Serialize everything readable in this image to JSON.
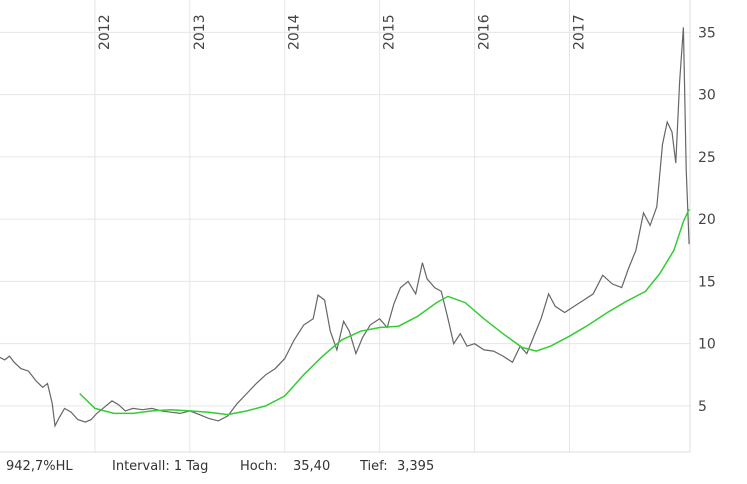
{
  "chart_data": {
    "type": "line",
    "xlim": [
      2011.0,
      2018.27
    ],
    "ylim": [
      1.3,
      37.6
    ],
    "xticks": [
      2012,
      2013,
      2014,
      2015,
      2016,
      2017
    ],
    "yticks": [
      5,
      10,
      15,
      20,
      25,
      30,
      35
    ],
    "grid": true,
    "series": [
      {
        "color": "#666666",
        "x": [
          2011.0,
          2011.05,
          2011.1,
          2011.15,
          2011.22,
          2011.3,
          2011.38,
          2011.45,
          2011.5,
          2011.55,
          2011.58,
          2011.62,
          2011.68,
          2011.75,
          2011.82,
          2011.9,
          2011.96,
          2012.02,
          2012.1,
          2012.18,
          2012.25,
          2012.32,
          2012.4,
          2012.5,
          2012.6,
          2012.7,
          2012.8,
          2012.9,
          2013.0,
          2013.1,
          2013.2,
          2013.3,
          2013.4,
          2013.5,
          2013.6,
          2013.7,
          2013.8,
          2013.9,
          2014.0,
          2014.1,
          2014.2,
          2014.3,
          2014.35,
          2014.42,
          2014.48,
          2014.55,
          2014.62,
          2014.68,
          2014.75,
          2014.82,
          2014.9,
          2015.0,
          2015.08,
          2015.15,
          2015.22,
          2015.3,
          2015.38,
          2015.45,
          2015.5,
          2015.58,
          2015.65,
          2015.72,
          2015.78,
          2015.85,
          2015.92,
          2016.0,
          2016.1,
          2016.2,
          2016.3,
          2016.4,
          2016.48,
          2016.55,
          2016.62,
          2016.7,
          2016.78,
          2016.85,
          2016.95,
          2017.05,
          2017.15,
          2017.25,
          2017.35,
          2017.45,
          2017.55,
          2017.62,
          2017.7,
          2017.78,
          2017.85,
          2017.92,
          2017.98,
          2018.03,
          2018.08,
          2018.12,
          2018.16,
          2018.2,
          2018.23,
          2018.26
        ],
        "values": [
          8.9,
          8.7,
          9.0,
          8.5,
          8.0,
          7.8,
          7.0,
          6.5,
          6.8,
          5.2,
          3.4,
          4.0,
          4.8,
          4.5,
          3.9,
          3.7,
          3.9,
          4.4,
          4.9,
          5.4,
          5.1,
          4.6,
          4.8,
          4.7,
          4.8,
          4.6,
          4.5,
          4.4,
          4.6,
          4.3,
          4.0,
          3.8,
          4.2,
          5.2,
          6.0,
          6.8,
          7.5,
          8.0,
          8.8,
          10.3,
          11.5,
          12.0,
          13.9,
          13.5,
          11.0,
          9.5,
          11.8,
          11.0,
          9.2,
          10.5,
          11.5,
          12.0,
          11.3,
          13.2,
          14.5,
          15.0,
          14.0,
          16.5,
          15.2,
          14.5,
          14.2,
          12.0,
          10.0,
          10.8,
          9.8,
          10.0,
          9.5,
          9.4,
          9.0,
          8.5,
          9.8,
          9.2,
          10.5,
          12.0,
          14.0,
          13.0,
          12.5,
          13.0,
          13.5,
          14.0,
          15.5,
          14.8,
          14.5,
          16.0,
          17.5,
          20.5,
          19.5,
          21.0,
          26.0,
          27.8,
          27.0,
          24.5,
          31.0,
          35.4,
          24.0,
          18.0
        ]
      },
      {
        "color": "#33cc33",
        "x": [
          2011.84,
          2012.0,
          2012.2,
          2012.4,
          2012.6,
          2012.8,
          2013.0,
          2013.2,
          2013.4,
          2013.6,
          2013.8,
          2014.0,
          2014.2,
          2014.4,
          2014.6,
          2014.8,
          2015.0,
          2015.2,
          2015.4,
          2015.6,
          2015.72,
          2015.9,
          2016.1,
          2016.3,
          2016.5,
          2016.65,
          2016.8,
          2017.0,
          2017.2,
          2017.4,
          2017.6,
          2017.8,
          2017.95,
          2018.1,
          2018.2,
          2018.26
        ],
        "values": [
          6.0,
          4.8,
          4.4,
          4.4,
          4.6,
          4.7,
          4.6,
          4.5,
          4.3,
          4.6,
          5.0,
          5.8,
          7.5,
          9.0,
          10.3,
          11.0,
          11.3,
          11.4,
          12.2,
          13.3,
          13.8,
          13.3,
          12.0,
          10.8,
          9.7,
          9.4,
          9.8,
          10.6,
          11.5,
          12.5,
          13.4,
          14.2,
          15.6,
          17.5,
          19.8,
          20.8
        ]
      }
    ]
  },
  "footer": {
    "range": "942,7%HL",
    "interval": "Intervall: 1 Tag",
    "high_label": "Hoch:",
    "high_value": "35,40",
    "low_label": "Tief:",
    "low_value": "3,395"
  }
}
